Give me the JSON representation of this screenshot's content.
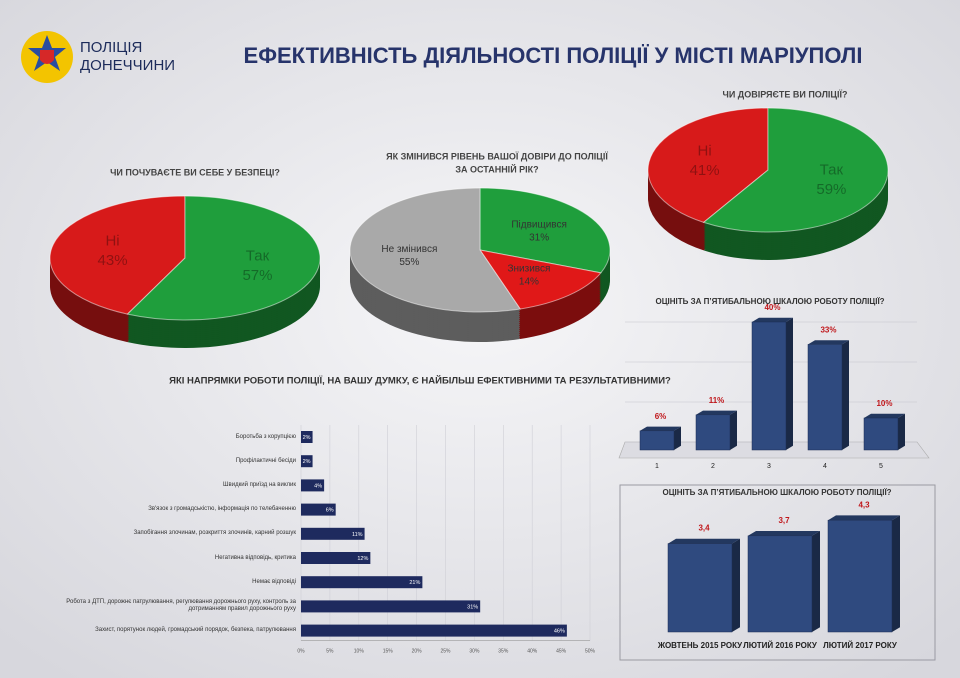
{
  "header": {
    "logo": [
      "ПОЛІЦІЯ",
      "ДОНЕЧЧИНИ"
    ],
    "title": "ЕФЕКТИВНІСТЬ ДІЯЛЬНОСТІ ПОЛІЦІЇ У МІСТІ МАРІУПОЛІ"
  },
  "chart_data": [
    {
      "type": "pie",
      "title": [
        "ЧИ ПОЧУВАЄТЕ ВИ СЕБЕ У БЕЗПЕЦІ?"
      ],
      "categories": [
        "Ні",
        "Так"
      ],
      "values": [
        43,
        57
      ],
      "value_labels": [
        "43%",
        "57%"
      ],
      "colors": [
        "#d71a1a",
        "#1f9e3c"
      ]
    },
    {
      "type": "pie",
      "title": [
        "ЯК ЗМІНИВСЯ РІВЕНЬ ВАШОЇ ДОВІРИ ДО ПОЛІЦІЇ",
        "ЗА ОСТАННІЙ РІК?"
      ],
      "categories": [
        "Підвищився",
        "Знизився",
        "Не змінився"
      ],
      "values": [
        31,
        14,
        55
      ],
      "value_labels": [
        "31%",
        "14%",
        "55%"
      ],
      "colors": [
        "#1f9e3c",
        "#e01818",
        "#a9a9a9"
      ]
    },
    {
      "type": "pie",
      "title": [
        "ЧИ ДОВІРЯЄТЕ ВИ ПОЛІЦІЇ?"
      ],
      "categories": [
        "Ні",
        "Так"
      ],
      "values": [
        41,
        59
      ],
      "value_labels": [
        "41%",
        "59%"
      ],
      "colors": [
        "#d71a1a",
        "#1f9e3c"
      ]
    },
    {
      "type": "bar",
      "title": "ОЦІНІТЬ  ЗА П’ЯТИБАЛЬНОЮ ШКАЛОЮ РОБОТУ ПОЛІЦІЇ?",
      "categories": [
        "1",
        "2",
        "3",
        "4",
        "5"
      ],
      "values": [
        6,
        11,
        40,
        33,
        10
      ],
      "value_labels": [
        "6%",
        "11%",
        "40%",
        "33%",
        "10%"
      ],
      "color": "#2f4a7f"
    },
    {
      "type": "bar",
      "title": "ОЦІНІТЬ  ЗА П’ЯТИБАЛЬНОЮ ШКАЛОЮ РОБОТУ ПОЛІЦІЇ?",
      "categories": [
        "ЖОВТЕНЬ 2015 РОКУ",
        "ЛЮТИЙ 2016 РОКУ",
        "ЛЮТИЙ 2017 РОКУ"
      ],
      "values": [
        3.4,
        3.7,
        4.3
      ],
      "value_labels": [
        "3,4",
        "3,7",
        "4,3"
      ],
      "color": "#2f4a7f"
    },
    {
      "type": "bar",
      "orientation": "horizontal",
      "title": "ЯКІ НАПРЯМКИ РОБОТИ ПОЛІЦІЇ, НА ВАШУ ДУМКУ, Є НАЙБІЛЬШ ЕФЕКТИВНИМИ ТА РЕЗУЛЬТАТИВНИМИ?",
      "categories": [
        "Боротьба з корупцією",
        "Профілактичні бесіди",
        "Швидкий приїзд на виклик",
        "Зв'язок з громадськістю, інформація по телебаченню",
        "Запобігання злочинам, розкриття злочинів, карний розшук",
        "Негативна відповідь, критика",
        "Немає відповіді",
        "Робота з ДТП, дорожнє патрулювання, регулювання дорожнього руху, контроль за дотриманням правил дорожнього руху",
        "Захист, порятунок людей, громадський порядок, безпека, патрулювання"
      ],
      "values": [
        2,
        2,
        4,
        6,
        11,
        12,
        21,
        31,
        46
      ],
      "value_labels": [
        "2%",
        "2%",
        "4%",
        "6%",
        "11%",
        "12%",
        "21%",
        "31%",
        "46%"
      ],
      "color": "#1e2a5e",
      "grid": true,
      "xlim": [
        0,
        50
      ],
      "xticks": [
        {
          "value": 0,
          "label": "0%"
        },
        {
          "value": 5,
          "label": "5%"
        },
        {
          "value": 10,
          "label": "10%"
        },
        {
          "value": 15,
          "label": "15%"
        },
        {
          "value": 20,
          "label": "20%"
        },
        {
          "value": 25,
          "label": "25%"
        },
        {
          "value": 30,
          "label": "30%"
        },
        {
          "value": 35,
          "label": "35%"
        },
        {
          "value": 40,
          "label": "40%"
        },
        {
          "value": 45,
          "label": "45%"
        },
        {
          "value": 50,
          "label": "50%"
        }
      ]
    }
  ]
}
